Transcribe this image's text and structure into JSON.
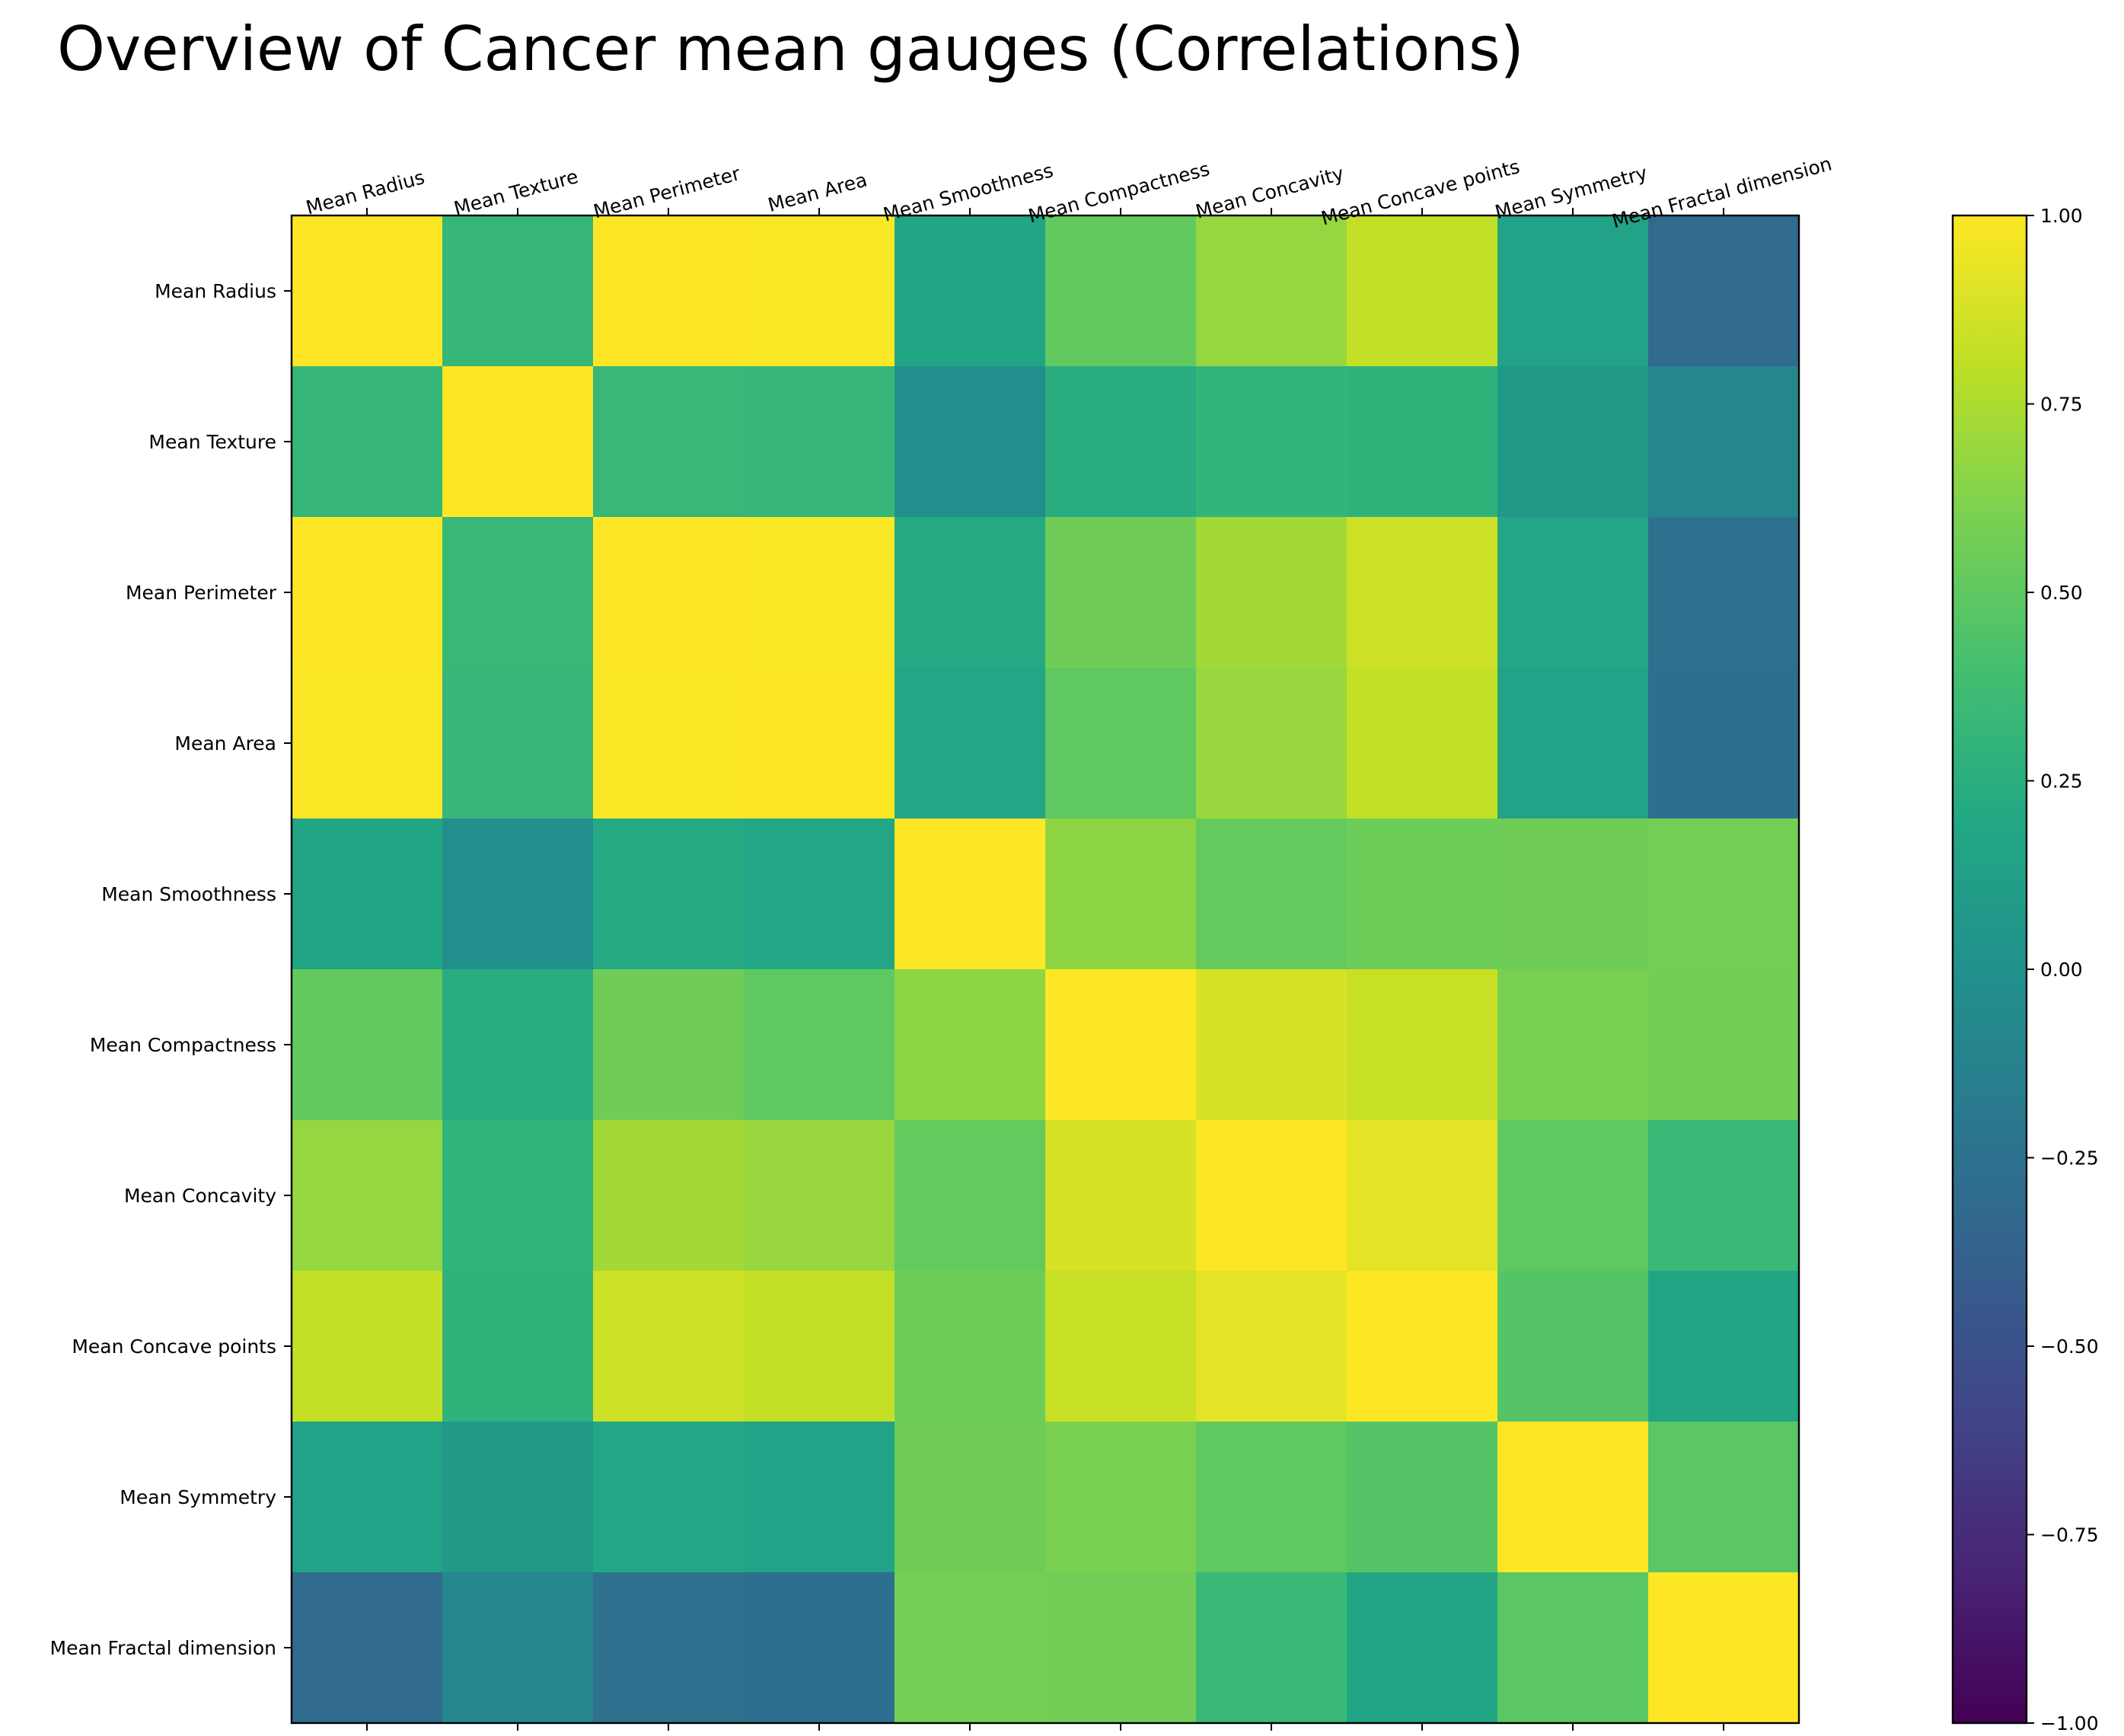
{
  "chart_data": {
    "type": "heatmap",
    "title": "Overview of Cancer mean gauges (Correlations)",
    "x_labels": [
      "Mean Radius",
      "Mean Texture",
      "Mean Perimeter",
      "Mean Area",
      "Mean Smoothness",
      "Mean Compactness",
      "Mean Concavity",
      "Mean Concave points",
      "Mean Symmetry",
      "Mean Fractal dimension"
    ],
    "y_labels": [
      "Mean Radius",
      "Mean Texture",
      "Mean Perimeter",
      "Mean Area",
      "Mean Smoothness",
      "Mean Compactness",
      "Mean Concavity",
      "Mean Concave points",
      "Mean Symmetry",
      "Mean Fractal dimension"
    ],
    "values": [
      [
        1.0,
        0.32,
        1.0,
        0.99,
        0.17,
        0.51,
        0.68,
        0.82,
        0.15,
        -0.31
      ],
      [
        0.32,
        1.0,
        0.33,
        0.32,
        -0.02,
        0.24,
        0.3,
        0.29,
        0.07,
        -0.08
      ],
      [
        1.0,
        0.33,
        1.0,
        0.99,
        0.21,
        0.56,
        0.72,
        0.85,
        0.18,
        -0.26
      ],
      [
        0.99,
        0.32,
        0.99,
        1.0,
        0.18,
        0.5,
        0.69,
        0.82,
        0.15,
        -0.28
      ],
      [
        0.17,
        -0.02,
        0.21,
        0.18,
        1.0,
        0.66,
        0.52,
        0.55,
        0.56,
        0.58
      ],
      [
        0.51,
        0.24,
        0.56,
        0.5,
        0.66,
        1.0,
        0.88,
        0.83,
        0.6,
        0.57
      ],
      [
        0.68,
        0.3,
        0.72,
        0.69,
        0.52,
        0.88,
        1.0,
        0.92,
        0.5,
        0.34
      ],
      [
        0.82,
        0.29,
        0.85,
        0.82,
        0.55,
        0.83,
        0.92,
        1.0,
        0.46,
        0.17
      ],
      [
        0.15,
        0.07,
        0.18,
        0.15,
        0.56,
        0.6,
        0.5,
        0.46,
        1.0,
        0.48
      ],
      [
        -0.31,
        -0.08,
        -0.26,
        -0.28,
        0.58,
        0.57,
        0.34,
        0.17,
        0.48,
        1.0
      ]
    ],
    "colormap": "viridis",
    "vmin": -1.0,
    "vmax": 1.0,
    "colorbar_ticks": [
      {
        "value": 1.0,
        "label": "1.00"
      },
      {
        "value": 0.75,
        "label": "0.75"
      },
      {
        "value": 0.5,
        "label": "0.50"
      },
      {
        "value": 0.25,
        "label": "0.25"
      },
      {
        "value": 0.0,
        "label": "0.00"
      },
      {
        "value": -0.25,
        "label": "−0.25"
      },
      {
        "value": -0.5,
        "label": "−0.50"
      },
      {
        "value": -0.75,
        "label": "−0.75"
      },
      {
        "value": -1.0,
        "label": "−1.00"
      }
    ],
    "colorbar_placement": "right",
    "xlabel": "",
    "ylabel": "",
    "grid": false
  }
}
